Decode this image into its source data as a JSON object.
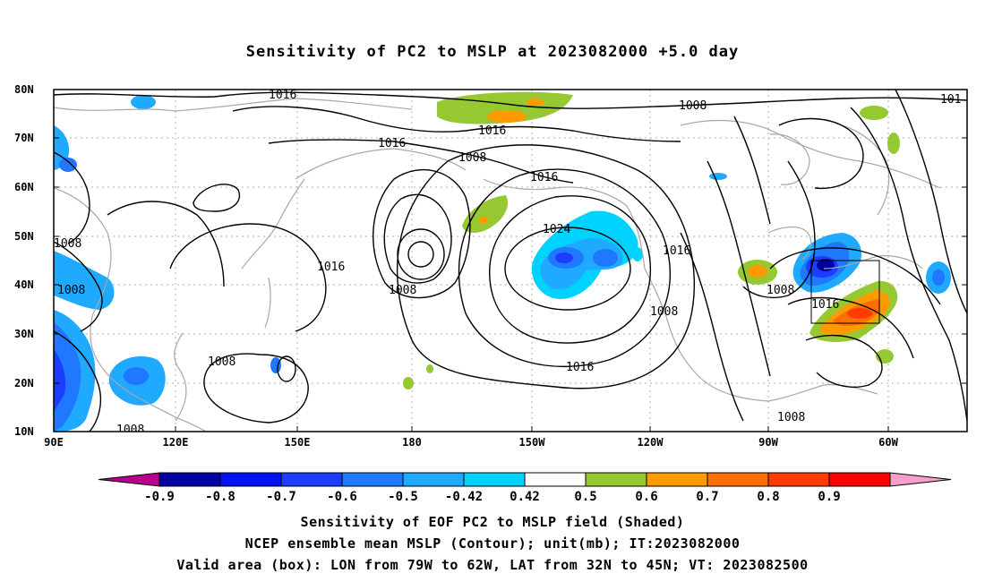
{
  "title": "Sensitivity of PC2 to MSLP at 2023082000 +5.0 day",
  "map": {
    "lon_labels": [
      "90E",
      "120E",
      "150E",
      "180",
      "150W",
      "120W",
      "90W",
      "60W"
    ],
    "lat_labels": [
      "80N",
      "70N",
      "60N",
      "50N",
      "40N",
      "30N",
      "20N",
      "10N"
    ],
    "contour_labels": [
      "1016",
      "1016",
      "1016",
      "1016",
      "1008",
      "1008",
      "1008",
      "1008",
      "1008",
      "1016",
      "1024",
      "1016",
      "1008",
      "1016",
      "1008",
      "1016",
      "1008",
      "1008",
      "101",
      "1008"
    ],
    "valid_box": {
      "lon_west": "79W",
      "lon_east": "62W",
      "lat_south": "32N",
      "lat_north": "45N"
    }
  },
  "colorbar": {
    "labels": [
      "-0.9",
      "-0.8",
      "-0.7",
      "-0.6",
      "-0.5",
      "-0.42",
      "0.42",
      "0.5",
      "0.6",
      "0.7",
      "0.8",
      "0.9"
    ],
    "colors": [
      "#b8008c",
      "#0000a0",
      "#0012f0",
      "#1c3cff",
      "#1f78ff",
      "#1faaff",
      "#00d2ff",
      "#ffffff",
      "#96c832",
      "#ff9b00",
      "#ff6e00",
      "#ff3c00",
      "#ff0000",
      "#f5a0c8"
    ]
  },
  "captions": {
    "line1": "Sensitivity of EOF PC2 to MSLP field (Shaded)",
    "line2": "NCEP ensemble mean MSLP (Contour); unit(mb); IT:2023082000",
    "line3": "Valid area (box): LON from 79W to 62W, LAT from 32N to 45N; VT: 2023082500"
  }
}
